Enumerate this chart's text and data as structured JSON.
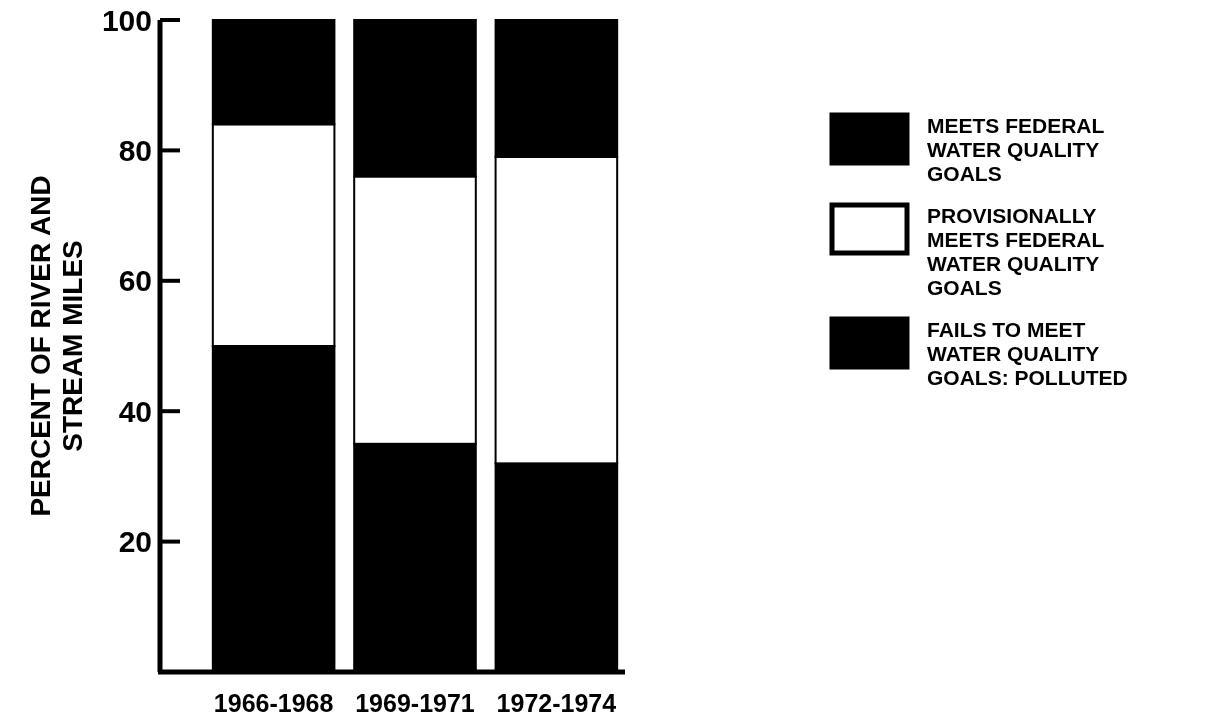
{
  "chart_data": {
    "type": "bar",
    "stacked": true,
    "ylabel": "PERCENT OF RIVER AND STREAM MILES",
    "categories": [
      "1966-1968",
      "1969-1971",
      "1972-1974"
    ],
    "ylim": [
      0,
      100
    ],
    "yticks": [
      20,
      40,
      60,
      80,
      100
    ],
    "legend": "right",
    "series": [
      {
        "name": "FAILS TO MEET WATER QUALITY GOALS: POLLUTED",
        "color": "#000000",
        "values": [
          50,
          35,
          32
        ]
      },
      {
        "name": "PROVISIONALLY MEETS FEDERAL WATER QUALITY GOALS",
        "color": "#ffffff",
        "values": [
          34,
          41,
          47
        ]
      },
      {
        "name": "MEETS FEDERAL WATER QUALITY GOALS",
        "color": "#000000",
        "values": [
          16,
          24,
          21
        ]
      }
    ]
  }
}
